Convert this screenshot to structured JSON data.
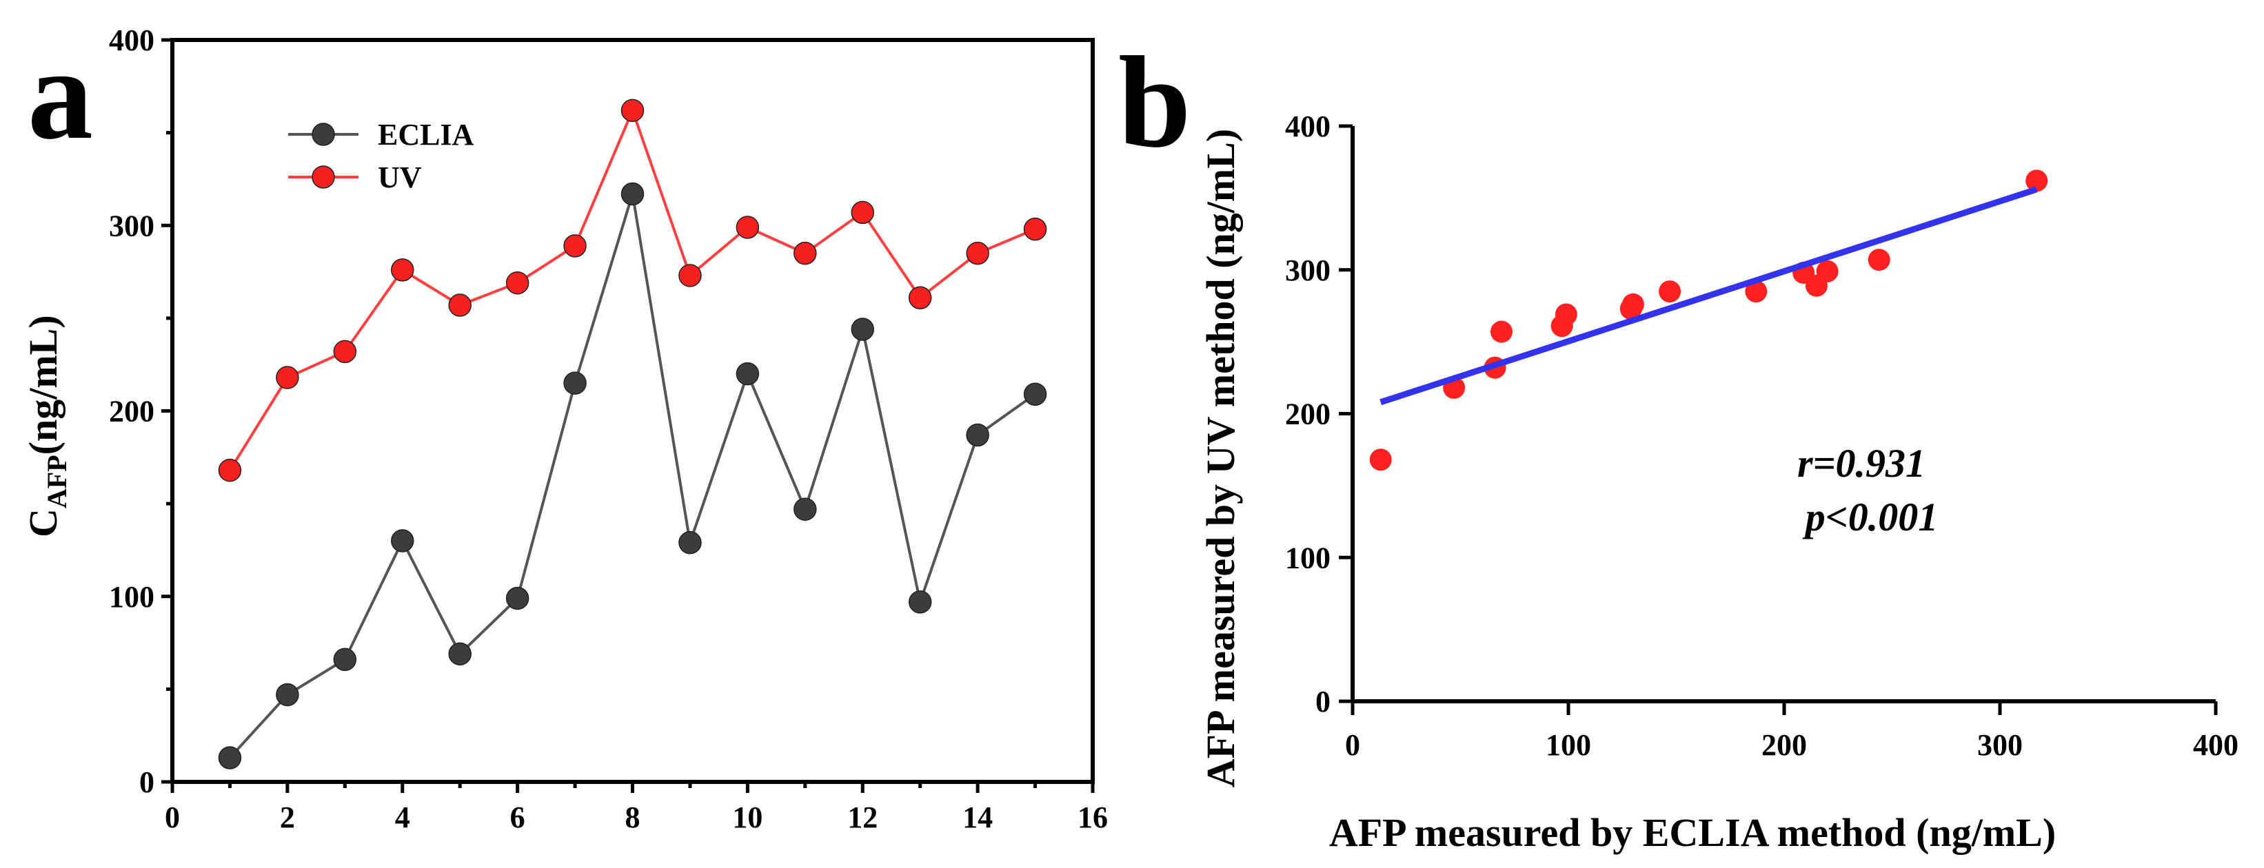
{
  "colors": {
    "eclia": "#3c3c3c",
    "eclia_line": "#555555",
    "uv": "#f52020",
    "uv_line": "#ff4040",
    "scatter": "#ff2020",
    "fit": "#3333ee"
  },
  "chart_data": [
    {
      "type": "line",
      "panel_label": "a",
      "title": "",
      "ylabel_main": "C",
      "ylabel_sub": "AFP",
      "ylabel_rest": "(ng/mL)",
      "xlabel": "",
      "xlim": [
        0,
        16
      ],
      "ylim": [
        0,
        400
      ],
      "xticks": [
        0,
        2,
        4,
        6,
        8,
        10,
        12,
        14,
        16
      ],
      "yticks": [
        0,
        100,
        200,
        300,
        400
      ],
      "legend_position": "top-left",
      "x": [
        1,
        2,
        3,
        4,
        5,
        6,
        7,
        8,
        9,
        10,
        11,
        12,
        13,
        14,
        15
      ],
      "series": [
        {
          "name": "ECLIA",
          "values": [
            13,
            47,
            66,
            130,
            69,
            99,
            215,
            317,
            129,
            220,
            147,
            244,
            97,
            187,
            209
          ]
        },
        {
          "name": "UV",
          "values": [
            168,
            218,
            232,
            276,
            257,
            269,
            289,
            362,
            273,
            299,
            285,
            307,
            261,
            285,
            298
          ]
        }
      ]
    },
    {
      "type": "scatter",
      "panel_label": "b",
      "title": "",
      "xlabel": "AFP measured by ECLIA method (ng/mL)",
      "ylabel": "AFP measured by UV method (ng/mL)",
      "xlim": [
        0,
        400
      ],
      "ylim": [
        0,
        400
      ],
      "xticks": [
        0,
        100,
        200,
        300,
        400
      ],
      "yticks": [
        0,
        100,
        200,
        300,
        400
      ],
      "points": {
        "x": [
          13,
          47,
          66,
          69,
          97,
          99,
          129,
          130,
          147,
          187,
          209,
          215,
          220,
          244,
          317
        ],
        "y": [
          168,
          218,
          232,
          257,
          261,
          269,
          273,
          276,
          285,
          285,
          298,
          289,
          299,
          307,
          362
        ]
      },
      "fit_line": {
        "x": [
          13,
          317
        ],
        "y": [
          208,
          356
        ]
      },
      "annotations": [
        "r=0.931",
        "p<0.001"
      ]
    }
  ]
}
